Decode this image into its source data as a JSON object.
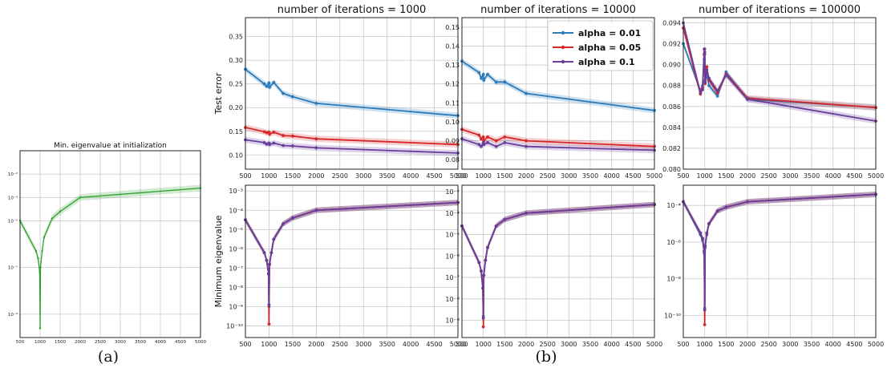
{
  "panel_labels": {
    "a": "(a)",
    "b": "(b)"
  },
  "legend": [
    {
      "label": "alpha = 0.01",
      "color": "#2b7bba"
    },
    {
      "label": "alpha = 0.05",
      "color": "#d62728"
    },
    {
      "label": "alpha = 0.1",
      "color": "#6a3d9a"
    }
  ],
  "chart_data": [
    {
      "id": "a",
      "type": "line",
      "title": "Min. eigenvalue at initialization",
      "xlabel": "",
      "ylabel": "",
      "x_ticks": [
        "500",
        "1000",
        "1500",
        "2000",
        "2500",
        "3000",
        "3500",
        "4000",
        "4500",
        "5000"
      ],
      "xlim": [
        500,
        5000
      ],
      "y_scale": "log",
      "ylim_exp": [
        -10,
        -2
      ],
      "y_ticks": [
        "10⁻³",
        "10⁻⁴",
        "10⁻⁵",
        "10⁻⁷",
        "10⁻⁹"
      ],
      "y_tick_exps": [
        -3,
        -4,
        -5,
        -7,
        -9
      ],
      "series": [
        {
          "color": "#2ca02c",
          "x": [
            500,
            900,
            950,
            990,
            1000,
            1010,
            1050,
            1100,
            1300,
            1500,
            2000,
            5000
          ],
          "y_exp": [
            -5.0,
            -6.3,
            -6.6,
            -7.2,
            -9.6,
            -7.0,
            -6.3,
            -5.7,
            -4.9,
            -4.6,
            -4.0,
            -3.6
          ]
        }
      ]
    },
    {
      "id": "b-top-1",
      "type": "line",
      "title": "number of iterations = 1000",
      "xlabel": "",
      "ylabel": "Test error",
      "x_ticks": [
        "500",
        "1000",
        "1500",
        "2000",
        "2500",
        "3000",
        "3500",
        "4000",
        "4500",
        "5000"
      ],
      "xlim": [
        500,
        5000
      ],
      "ylim": [
        0.07,
        0.39
      ],
      "y_ticks": [
        "0.10",
        "0.15",
        "0.20",
        "0.25",
        "0.30",
        "0.35"
      ],
      "y_tick_values": [
        0.1,
        0.15,
        0.2,
        0.25,
        0.3,
        0.35
      ],
      "series": [
        {
          "color": "#2b7bba",
          "x": [
            500,
            900,
            950,
            1000,
            1010,
            1100,
            1300,
            1500,
            2000,
            5000
          ],
          "y": [
            0.281,
            0.25,
            0.245,
            0.252,
            0.243,
            0.253,
            0.23,
            0.223,
            0.209,
            0.183
          ]
        },
        {
          "color": "#d62728",
          "x": [
            500,
            900,
            950,
            1000,
            1010,
            1100,
            1300,
            1500,
            2000,
            5000
          ],
          "y": [
            0.158,
            0.149,
            0.147,
            0.148,
            0.144,
            0.148,
            0.141,
            0.14,
            0.134,
            0.122
          ]
        },
        {
          "color": "#6a3d9a",
          "x": [
            500,
            900,
            950,
            1000,
            1010,
            1100,
            1300,
            1500,
            2000,
            5000
          ],
          "y": [
            0.132,
            0.126,
            0.123,
            0.125,
            0.122,
            0.125,
            0.12,
            0.119,
            0.115,
            0.104
          ]
        }
      ]
    },
    {
      "id": "b-top-2",
      "type": "line",
      "title": "number of iterations = 10000",
      "xlabel": "",
      "ylabel": "",
      "x_ticks": [
        "500",
        "1000",
        "1500",
        "2000",
        "2500",
        "3000",
        "3500",
        "4000",
        "4500",
        "5000"
      ],
      "xlim": [
        500,
        5000
      ],
      "ylim": [
        0.075,
        0.155
      ],
      "y_ticks": [
        "0.08",
        "0.09",
        "0.10",
        "0.11",
        "0.12",
        "0.13",
        "0.14",
        "0.15"
      ],
      "y_tick_values": [
        0.08,
        0.09,
        0.1,
        0.11,
        0.12,
        0.13,
        0.14,
        0.15
      ],
      "series": [
        {
          "color": "#2b7bba",
          "x": [
            500,
            900,
            950,
            1000,
            1010,
            1100,
            1300,
            1500,
            2000,
            5000
          ],
          "y": [
            0.132,
            0.126,
            0.123,
            0.125,
            0.122,
            0.125,
            0.121,
            0.121,
            0.115,
            0.106
          ]
        },
        {
          "color": "#d62728",
          "x": [
            500,
            900,
            950,
            1000,
            1010,
            1100,
            1300,
            1500,
            2000,
            5000
          ],
          "y": [
            0.096,
            0.093,
            0.091,
            0.092,
            0.09,
            0.092,
            0.09,
            0.092,
            0.09,
            0.087
          ]
        },
        {
          "color": "#6a3d9a",
          "x": [
            500,
            900,
            950,
            1000,
            1010,
            1100,
            1300,
            1500,
            2000,
            5000
          ],
          "y": [
            0.091,
            0.088,
            0.087,
            0.089,
            0.088,
            0.089,
            0.087,
            0.089,
            0.087,
            0.085
          ]
        }
      ]
    },
    {
      "id": "b-top-3",
      "type": "line",
      "title": "number of iterations = 100000",
      "xlabel": "",
      "ylabel": "",
      "x_ticks": [
        "500",
        "1000",
        "1500",
        "2000",
        "2500",
        "3000",
        "3500",
        "4000",
        "4500",
        "5000"
      ],
      "xlim": [
        500,
        5000
      ],
      "ylim": [
        0.08,
        0.0945
      ],
      "y_ticks": [
        "0.080",
        "0.082",
        "0.084",
        "0.086",
        "0.088",
        "0.090",
        "0.092",
        "0.094"
      ],
      "y_tick_values": [
        0.08,
        0.082,
        0.084,
        0.086,
        0.088,
        0.09,
        0.092,
        0.094
      ],
      "series": [
        {
          "color": "#2b7bba",
          "x": [
            500,
            900,
            950,
            990,
            1000,
            1010,
            1050,
            1100,
            1300,
            1500,
            2000,
            5000
          ],
          "y": [
            0.092,
            0.0875,
            0.088,
            0.0905,
            0.091,
            0.0885,
            0.089,
            0.088,
            0.087,
            0.0893,
            0.0867,
            0.0859
          ]
        },
        {
          "color": "#d62728",
          "x": [
            500,
            900,
            950,
            990,
            1000,
            1010,
            1050,
            1100,
            1300,
            1500,
            2000,
            5000
          ],
          "y": [
            0.0935,
            0.0872,
            0.0878,
            0.091,
            0.0915,
            0.0882,
            0.0898,
            0.0885,
            0.0873,
            0.0891,
            0.0868,
            0.0859
          ]
        },
        {
          "color": "#6a3d9a",
          "x": [
            500,
            900,
            950,
            990,
            1000,
            1010,
            1050,
            1100,
            1300,
            1500,
            2000,
            5000
          ],
          "y": [
            0.094,
            0.0873,
            0.0876,
            0.0915,
            0.0912,
            0.0883,
            0.0895,
            0.0887,
            0.0875,
            0.089,
            0.0867,
            0.0846
          ]
        }
      ]
    },
    {
      "id": "b-bottom-1",
      "type": "line",
      "title": "",
      "xlabel": "",
      "ylabel": "Minimum eigenvalue",
      "x_ticks": [
        "500",
        "1000",
        "1500",
        "2000",
        "2500",
        "3000",
        "3500",
        "4000",
        "4500",
        "5000"
      ],
      "xlim": [
        500,
        5000
      ],
      "y_scale": "log",
      "ylim_exp": [
        -10.6,
        -2.7
      ],
      "y_ticks": [
        "10⁻³",
        "10⁻⁴",
        "10⁻⁵",
        "10⁻⁶",
        "10⁻⁷",
        "10⁻⁸",
        "10⁻⁹",
        "10⁻¹⁰"
      ],
      "y_tick_exps": [
        -3,
        -4,
        -5,
        -6,
        -7,
        -8,
        -9,
        -10
      ],
      "series": [
        {
          "color": "#2b7bba",
          "x": [
            500,
            900,
            950,
            990,
            1000,
            1010,
            1050,
            1100,
            1300,
            1500,
            2000,
            5000
          ],
          "y_exp": [
            -4.5,
            -6.2,
            -6.6,
            -7.3,
            -9.0,
            -6.8,
            -6.2,
            -5.5,
            -4.7,
            -4.4,
            -4.0,
            -3.6
          ]
        },
        {
          "color": "#d62728",
          "x": [
            500,
            900,
            950,
            990,
            1000,
            1010,
            1050,
            1100,
            1300,
            1500,
            2000,
            5000
          ],
          "y_exp": [
            -4.5,
            -6.2,
            -6.6,
            -7.3,
            -9.9,
            -6.8,
            -6.2,
            -5.5,
            -4.7,
            -4.4,
            -4.0,
            -3.6
          ]
        },
        {
          "color": "#6a3d9a",
          "x": [
            500,
            900,
            950,
            990,
            1000,
            1010,
            1050,
            1100,
            1300,
            1500,
            2000,
            5000
          ],
          "y_exp": [
            -4.5,
            -6.2,
            -6.6,
            -7.3,
            -8.9,
            -6.8,
            -6.2,
            -5.5,
            -4.7,
            -4.4,
            -4.0,
            -3.6
          ]
        }
      ]
    },
    {
      "id": "b-bottom-2",
      "type": "line",
      "title": "",
      "xlabel": "",
      "ylabel": "",
      "x_ticks": [
        "500",
        "1000",
        "1500",
        "2000",
        "2500",
        "3000",
        "3500",
        "4000",
        "4500",
        "5000"
      ],
      "xlim": [
        500,
        5000
      ],
      "y_scale": "log",
      "ylim_exp": [
        -9.8,
        -2.7
      ],
      "y_ticks": [
        "10⁻³",
        "10⁻⁴",
        "10⁻⁵",
        "10⁻⁶",
        "10⁻⁷",
        "10⁻⁸",
        "10⁻⁹"
      ],
      "y_tick_exps": [
        -3,
        -4,
        -5,
        -6,
        -7,
        -8,
        -9
      ],
      "series": [
        {
          "color": "#2b7bba",
          "x": [
            500,
            900,
            950,
            990,
            1000,
            1010,
            1050,
            1100,
            1300,
            1500,
            2000,
            5000
          ],
          "y_exp": [
            -4.6,
            -6.3,
            -6.7,
            -7.5,
            -8.8,
            -6.9,
            -6.2,
            -5.6,
            -4.6,
            -4.3,
            -4.0,
            -3.6
          ]
        },
        {
          "color": "#d62728",
          "x": [
            500,
            900,
            950,
            990,
            1000,
            1010,
            1050,
            1100,
            1300,
            1500,
            2000,
            5000
          ],
          "y_exp": [
            -4.6,
            -6.3,
            -6.7,
            -7.5,
            -9.3,
            -6.9,
            -6.2,
            -5.6,
            -4.6,
            -4.3,
            -4.0,
            -3.6
          ]
        },
        {
          "color": "#6a3d9a",
          "x": [
            500,
            900,
            950,
            990,
            1000,
            1010,
            1050,
            1100,
            1300,
            1500,
            2000,
            5000
          ],
          "y_exp": [
            -4.6,
            -6.3,
            -6.7,
            -7.5,
            -8.9,
            -6.9,
            -6.2,
            -5.6,
            -4.6,
            -4.3,
            -4.0,
            -3.6
          ]
        }
      ]
    },
    {
      "id": "b-bottom-3",
      "type": "line",
      "title": "",
      "xlabel": "",
      "ylabel": "",
      "x_ticks": [
        "500",
        "1000",
        "1500",
        "2000",
        "2500",
        "3000",
        "3500",
        "4000",
        "4500",
        "5000"
      ],
      "xlim": [
        500,
        5000
      ],
      "y_scale": "log",
      "ylim_exp": [
        -11.2,
        -2.9
      ],
      "y_ticks": [
        "10⁻⁴",
        "10⁻⁶",
        "10⁻⁸",
        "10⁻¹⁰"
      ],
      "y_tick_exps": [
        -4,
        -6,
        -8,
        -10
      ],
      "series": [
        {
          "color": "#2b7bba",
          "x": [
            500,
            900,
            950,
            990,
            1000,
            1010,
            1050,
            1100,
            1300,
            1500,
            2000,
            5000
          ],
          "y_exp": [
            -3.8,
            -5.6,
            -5.9,
            -6.6,
            -9.6,
            -6.3,
            -5.6,
            -5.0,
            -4.3,
            -4.1,
            -3.8,
            -3.4
          ]
        },
        {
          "color": "#d62728",
          "x": [
            500,
            900,
            950,
            990,
            1000,
            1010,
            1050,
            1100,
            1300,
            1500,
            2000,
            5000
          ],
          "y_exp": [
            -3.8,
            -5.5,
            -5.8,
            -6.5,
            -10.5,
            -6.2,
            -5.5,
            -5.0,
            -4.3,
            -4.1,
            -3.8,
            -3.4
          ]
        },
        {
          "color": "#6a3d9a",
          "x": [
            500,
            900,
            950,
            990,
            1000,
            1010,
            1050,
            1100,
            1300,
            1500,
            2000,
            5000
          ],
          "y_exp": [
            -3.8,
            -5.5,
            -5.8,
            -6.5,
            -9.7,
            -6.2,
            -5.5,
            -5.0,
            -4.3,
            -4.1,
            -3.8,
            -3.4
          ]
        }
      ]
    }
  ]
}
